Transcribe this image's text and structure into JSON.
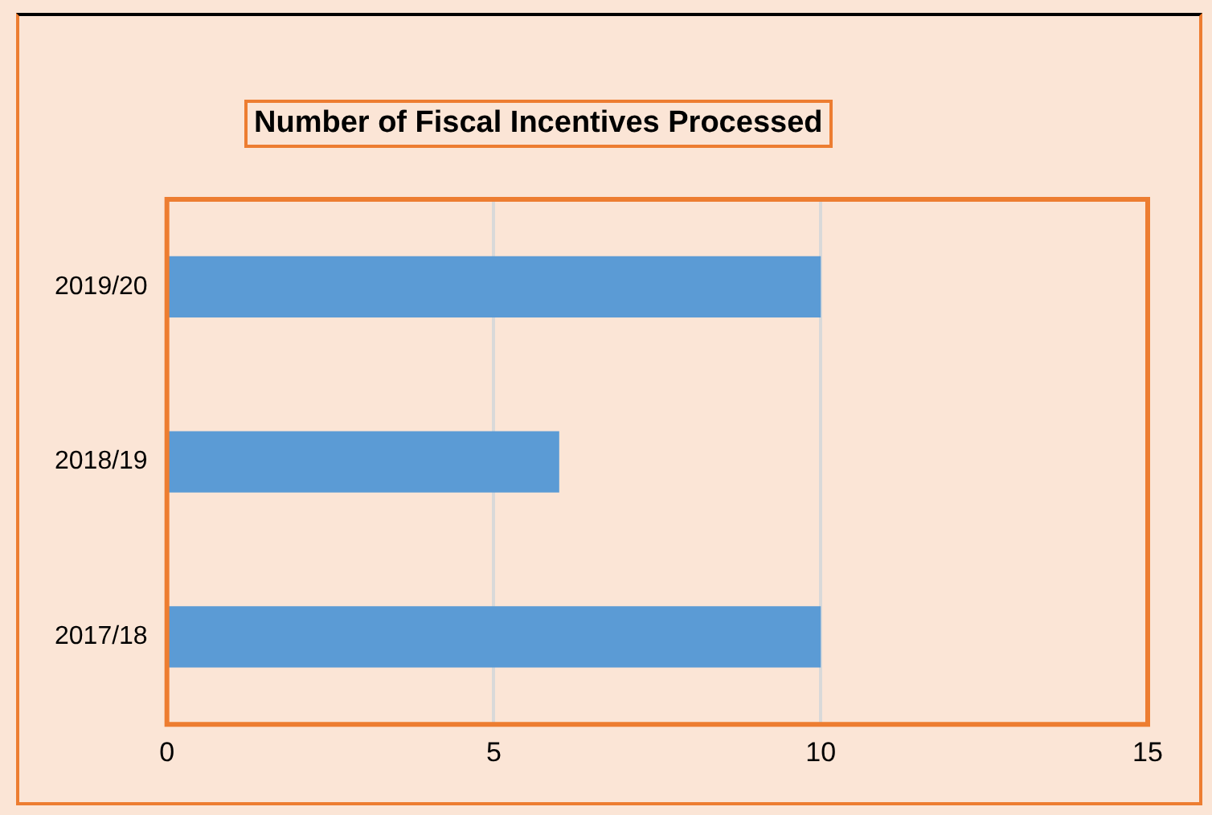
{
  "chart_data": {
    "type": "bar",
    "orientation": "horizontal",
    "title": "Number of Fiscal Incentives Processed",
    "categories": [
      "2019/20",
      "2018/19",
      "2017/18"
    ],
    "values": [
      10,
      6,
      10
    ],
    "color": "#5b9bd5",
    "xlim": [
      0,
      15
    ],
    "xticks": [
      0,
      5,
      10,
      15
    ],
    "grid": "x"
  }
}
